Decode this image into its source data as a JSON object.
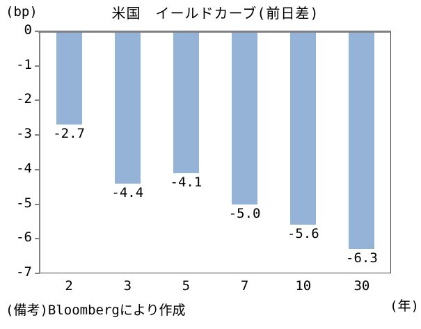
{
  "chart_data": {
    "type": "bar",
    "title": "米国　イールドカーブ(前日差)",
    "ylabel": "(bp)",
    "xlabel": "(年)",
    "categories": [
      "2",
      "3",
      "5",
      "7",
      "10",
      "30"
    ],
    "values": [
      -2.7,
      -4.4,
      -4.1,
      -5.0,
      -5.6,
      -6.3
    ],
    "data_labels": [
      "-2.7",
      "-4.4",
      "-4.1",
      "-5.0",
      "-5.6",
      "-6.3"
    ],
    "yticks": [
      0,
      -1,
      -2,
      -3,
      -4,
      -5,
      -6,
      -7
    ],
    "ylim": [
      -7,
      0
    ],
    "grid": false,
    "legend_position": "none",
    "bar_color": "#95B3D7",
    "axis_color": "#808080",
    "frame_color": "#404040",
    "source_note": "(備考)Bloombergにより作成"
  }
}
